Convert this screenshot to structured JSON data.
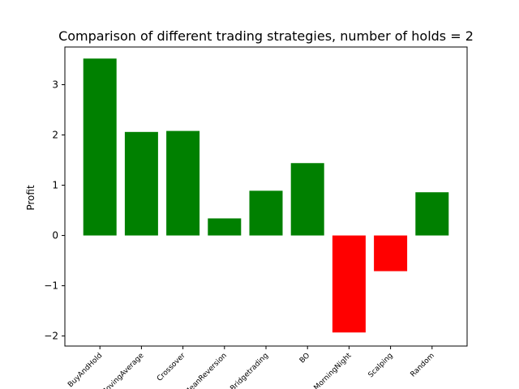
{
  "chart_data": {
    "type": "bar",
    "title": "Comparison of different trading strategies, number of holds = 2",
    "xlabel": "",
    "ylabel": "Profit",
    "categories": [
      "BuyAndHold",
      "MovingAverage",
      "Crossover",
      "MeanReversion",
      "Bridgetrading",
      "BO",
      "MorningNight",
      "Scalping",
      "Random"
    ],
    "values": [
      3.52,
      2.06,
      2.08,
      0.34,
      0.89,
      1.44,
      -1.93,
      -0.71,
      0.86
    ],
    "ylim": [
      -2.2,
      3.75
    ],
    "yticks": [
      -2,
      -1,
      0,
      1,
      2,
      3
    ],
    "ytick_labels": [
      "−2",
      "−1",
      "0",
      "1",
      "2",
      "3"
    ],
    "grid": false,
    "colors": {
      "positive": "#008000",
      "negative": "#ff0000"
    }
  }
}
